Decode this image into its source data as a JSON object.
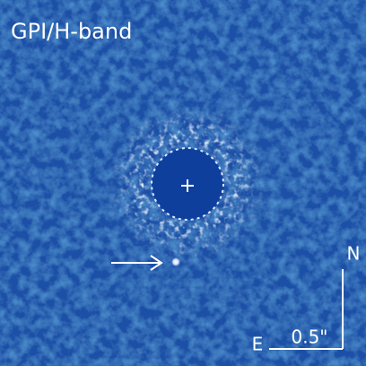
{
  "image": {
    "title": "GPI/H-band",
    "compass_north": "N",
    "compass_east": "E",
    "scale_label": "0.5\""
  }
}
